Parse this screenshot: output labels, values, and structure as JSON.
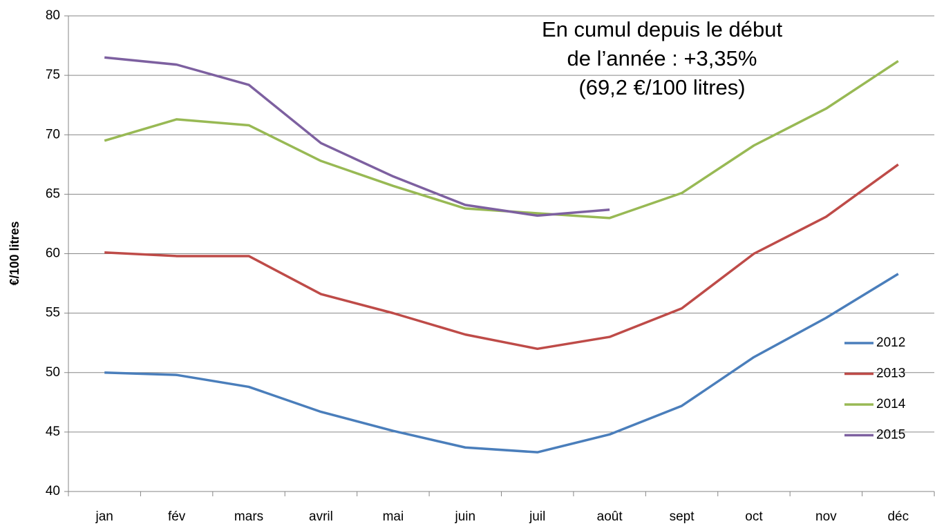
{
  "chart_data": {
    "type": "line",
    "y_label": "€/100 litres",
    "annotation": [
      "En cumul depuis le début",
      "de l’année : +3,35%",
      "(69,2 €/100 litres)"
    ],
    "categories": [
      "jan",
      "fév",
      "mars",
      "avril",
      "mai",
      "juin",
      "juil",
      "août",
      "sept",
      "oct",
      "nov",
      "déc"
    ],
    "series": [
      {
        "name": "2012",
        "color": "#4a7ebb",
        "values": [
          50.0,
          49.8,
          48.8,
          46.7,
          45.1,
          43.7,
          43.3,
          44.8,
          47.2,
          51.3,
          54.6,
          58.3
        ]
      },
      {
        "name": "2013",
        "color": "#be4b48",
        "values": [
          60.1,
          59.8,
          59.8,
          56.6,
          55.0,
          53.2,
          52.0,
          53.0,
          55.4,
          60.0,
          63.1,
          67.5
        ]
      },
      {
        "name": "2014",
        "color": "#98b954",
        "values": [
          69.5,
          71.3,
          70.8,
          67.8,
          65.7,
          63.8,
          63.4,
          63.0,
          65.1,
          69.1,
          72.2,
          76.2
        ]
      },
      {
        "name": "2015",
        "color": "#7d60a0",
        "values": [
          76.5,
          75.9,
          74.2,
          69.3,
          66.5,
          64.1,
          63.2,
          63.7,
          null,
          null,
          null,
          null
        ]
      }
    ],
    "ylim": [
      40,
      80
    ],
    "yticks": [
      40,
      45,
      50,
      55,
      60,
      65,
      70,
      75,
      80
    ],
    "grid": true,
    "legend": "right"
  }
}
